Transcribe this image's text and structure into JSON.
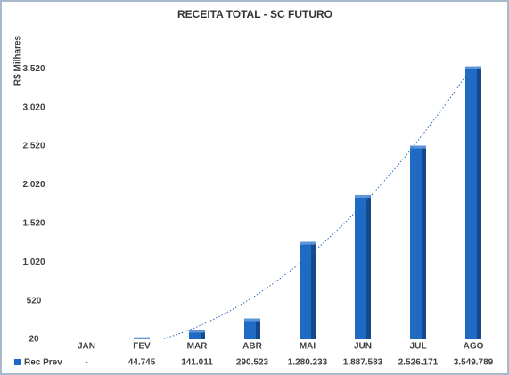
{
  "chart_data": {
    "type": "bar",
    "title": "RECEITA TOTAL  - SC FUTURO",
    "y_label": "R$ Milhares",
    "categories": [
      "JAN",
      "FEV",
      "MAR",
      "ABR",
      "MAI",
      "JUN",
      "JUL",
      "AGO"
    ],
    "series": [
      {
        "name": "Rec Prev",
        "color": "#1f6bc4",
        "values": [
          null,
          44.745,
          141.011,
          290.523,
          1280.233,
          1887.583,
          2526.171,
          3549.789
        ],
        "value_labels": [
          "-",
          "44.745",
          "141.011",
          "290.523",
          "1.280.233",
          "1.887.583",
          "2.526.171",
          "3.549.789"
        ]
      }
    ],
    "ylim": [
      20,
      3720
    ],
    "yticks": [
      20,
      520,
      {
        "value": 1020,
        "label": "1.020"
      },
      {
        "value": 1520,
        "label": "1.520"
      },
      {
        "value": 2020,
        "label": "2.020"
      },
      {
        "value": 2520,
        "label": "2.520"
      },
      {
        "value": 3020,
        "label": "3.020"
      },
      {
        "value": 3520,
        "label": "3.520"
      }
    ],
    "trendline": true
  }
}
